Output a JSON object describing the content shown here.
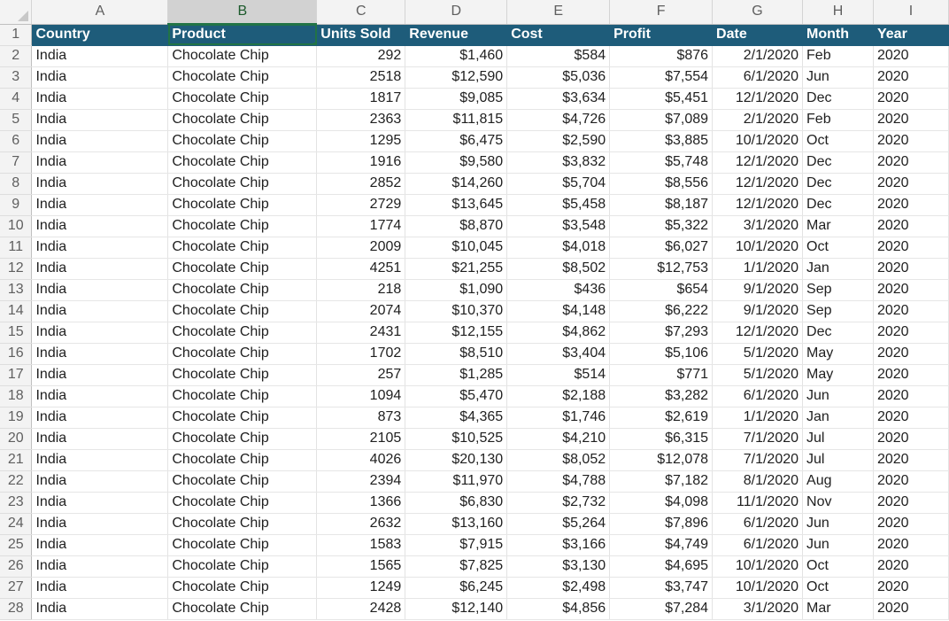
{
  "columns": [
    "A",
    "B",
    "C",
    "D",
    "E",
    "F",
    "G",
    "H",
    "I"
  ],
  "selected_column": "B",
  "header_row": {
    "row_number": "1",
    "cells": [
      "Country",
      "Product",
      "Units Sold",
      "Revenue",
      "Cost",
      "Profit",
      "Date",
      "Month",
      "Year"
    ]
  },
  "rows": [
    {
      "n": "2",
      "c": [
        "India",
        "Chocolate Chip",
        "292",
        "$1,460",
        "$584",
        "$876",
        "2/1/2020",
        "Feb",
        "2020"
      ]
    },
    {
      "n": "3",
      "c": [
        "India",
        "Chocolate Chip",
        "2518",
        "$12,590",
        "$5,036",
        "$7,554",
        "6/1/2020",
        "Jun",
        "2020"
      ]
    },
    {
      "n": "4",
      "c": [
        "India",
        "Chocolate Chip",
        "1817",
        "$9,085",
        "$3,634",
        "$5,451",
        "12/1/2020",
        "Dec",
        "2020"
      ]
    },
    {
      "n": "5",
      "c": [
        "India",
        "Chocolate Chip",
        "2363",
        "$11,815",
        "$4,726",
        "$7,089",
        "2/1/2020",
        "Feb",
        "2020"
      ]
    },
    {
      "n": "6",
      "c": [
        "India",
        "Chocolate Chip",
        "1295",
        "$6,475",
        "$2,590",
        "$3,885",
        "10/1/2020",
        "Oct",
        "2020"
      ]
    },
    {
      "n": "7",
      "c": [
        "India",
        "Chocolate Chip",
        "1916",
        "$9,580",
        "$3,832",
        "$5,748",
        "12/1/2020",
        "Dec",
        "2020"
      ]
    },
    {
      "n": "8",
      "c": [
        "India",
        "Chocolate Chip",
        "2852",
        "$14,260",
        "$5,704",
        "$8,556",
        "12/1/2020",
        "Dec",
        "2020"
      ]
    },
    {
      "n": "9",
      "c": [
        "India",
        "Chocolate Chip",
        "2729",
        "$13,645",
        "$5,458",
        "$8,187",
        "12/1/2020",
        "Dec",
        "2020"
      ]
    },
    {
      "n": "10",
      "c": [
        "India",
        "Chocolate Chip",
        "1774",
        "$8,870",
        "$3,548",
        "$5,322",
        "3/1/2020",
        "Mar",
        "2020"
      ]
    },
    {
      "n": "11",
      "c": [
        "India",
        "Chocolate Chip",
        "2009",
        "$10,045",
        "$4,018",
        "$6,027",
        "10/1/2020",
        "Oct",
        "2020"
      ]
    },
    {
      "n": "12",
      "c": [
        "India",
        "Chocolate Chip",
        "4251",
        "$21,255",
        "$8,502",
        "$12,753",
        "1/1/2020",
        "Jan",
        "2020"
      ]
    },
    {
      "n": "13",
      "c": [
        "India",
        "Chocolate Chip",
        "218",
        "$1,090",
        "$436",
        "$654",
        "9/1/2020",
        "Sep",
        "2020"
      ]
    },
    {
      "n": "14",
      "c": [
        "India",
        "Chocolate Chip",
        "2074",
        "$10,370",
        "$4,148",
        "$6,222",
        "9/1/2020",
        "Sep",
        "2020"
      ]
    },
    {
      "n": "15",
      "c": [
        "India",
        "Chocolate Chip",
        "2431",
        "$12,155",
        "$4,862",
        "$7,293",
        "12/1/2020",
        "Dec",
        "2020"
      ]
    },
    {
      "n": "16",
      "c": [
        "India",
        "Chocolate Chip",
        "1702",
        "$8,510",
        "$3,404",
        "$5,106",
        "5/1/2020",
        "May",
        "2020"
      ]
    },
    {
      "n": "17",
      "c": [
        "India",
        "Chocolate Chip",
        "257",
        "$1,285",
        "$514",
        "$771",
        "5/1/2020",
        "May",
        "2020"
      ]
    },
    {
      "n": "18",
      "c": [
        "India",
        "Chocolate Chip",
        "1094",
        "$5,470",
        "$2,188",
        "$3,282",
        "6/1/2020",
        "Jun",
        "2020"
      ]
    },
    {
      "n": "19",
      "c": [
        "India",
        "Chocolate Chip",
        "873",
        "$4,365",
        "$1,746",
        "$2,619",
        "1/1/2020",
        "Jan",
        "2020"
      ]
    },
    {
      "n": "20",
      "c": [
        "India",
        "Chocolate Chip",
        "2105",
        "$10,525",
        "$4,210",
        "$6,315",
        "7/1/2020",
        "Jul",
        "2020"
      ]
    },
    {
      "n": "21",
      "c": [
        "India",
        "Chocolate Chip",
        "4026",
        "$20,130",
        "$8,052",
        "$12,078",
        "7/1/2020",
        "Jul",
        "2020"
      ]
    },
    {
      "n": "22",
      "c": [
        "India",
        "Chocolate Chip",
        "2394",
        "$11,970",
        "$4,788",
        "$7,182",
        "8/1/2020",
        "Aug",
        "2020"
      ]
    },
    {
      "n": "23",
      "c": [
        "India",
        "Chocolate Chip",
        "1366",
        "$6,830",
        "$2,732",
        "$4,098",
        "11/1/2020",
        "Nov",
        "2020"
      ]
    },
    {
      "n": "24",
      "c": [
        "India",
        "Chocolate Chip",
        "2632",
        "$13,160",
        "$5,264",
        "$7,896",
        "6/1/2020",
        "Jun",
        "2020"
      ]
    },
    {
      "n": "25",
      "c": [
        "India",
        "Chocolate Chip",
        "1583",
        "$7,915",
        "$3,166",
        "$4,749",
        "6/1/2020",
        "Jun",
        "2020"
      ]
    },
    {
      "n": "26",
      "c": [
        "India",
        "Chocolate Chip",
        "1565",
        "$7,825",
        "$3,130",
        "$4,695",
        "10/1/2020",
        "Oct",
        "2020"
      ]
    },
    {
      "n": "27",
      "c": [
        "India",
        "Chocolate Chip",
        "1249",
        "$6,245",
        "$2,498",
        "$3,747",
        "10/1/2020",
        "Oct",
        "2020"
      ]
    },
    {
      "n": "28",
      "c": [
        "India",
        "Chocolate Chip",
        "2428",
        "$12,140",
        "$4,856",
        "$7,284",
        "3/1/2020",
        "Mar",
        "2020"
      ]
    }
  ],
  "colors": {
    "table_header_bg": "#1e5c7a",
    "table_header_text": "#ffffff",
    "selection_green": "#217346"
  }
}
